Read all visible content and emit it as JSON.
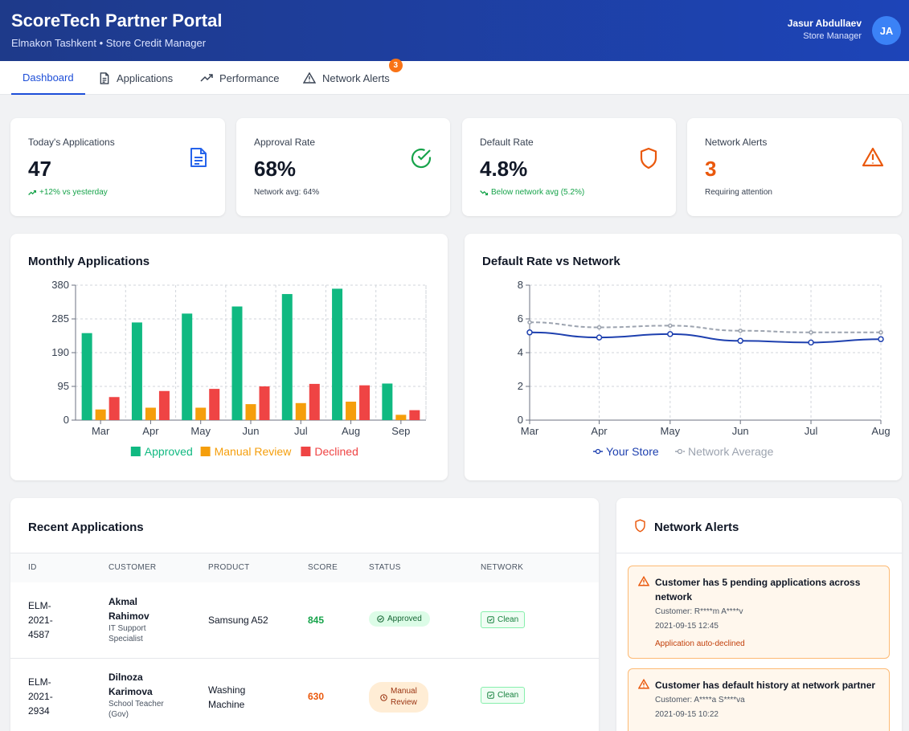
{
  "header": {
    "title": "ScoreTech Partner Portal",
    "subtitle": "Elmakon Tashkent • Store Credit Manager",
    "user_name": "Jasur Abdullaev",
    "user_role": "Store Manager",
    "avatar": "JA"
  },
  "tabs": [
    {
      "label": "Dashboard",
      "icon": "none"
    },
    {
      "label": "Applications",
      "icon": "document-icon"
    },
    {
      "label": "Performance",
      "icon": "trend-up-icon"
    },
    {
      "label": "Network Alerts",
      "icon": "warning-icon",
      "badge": "3"
    }
  ],
  "stats": {
    "applications": {
      "label": "Today's Applications",
      "value": "47",
      "sub": "+12% vs yesterday"
    },
    "approval": {
      "label": "Approval Rate",
      "value": "68%",
      "sub": "Network avg: 64%"
    },
    "default": {
      "label": "Default Rate",
      "value": "4.8%",
      "sub": "Below network avg (5.2%)"
    },
    "alerts": {
      "label": "Network Alerts",
      "value": "3",
      "sub": "Requiring attention"
    }
  },
  "colors": {
    "approved": "#10b981",
    "review": "#f59e0b",
    "declined": "#ef4444",
    "your_store": "#1e40af",
    "network": "#9ca3af"
  },
  "chart_data": [
    {
      "type": "bar",
      "title": "Monthly Applications",
      "categories": [
        "Mar",
        "Apr",
        "May",
        "Jun",
        "Jul",
        "Aug",
        "Sep"
      ],
      "series": [
        {
          "name": "Approved",
          "values": [
            245,
            275,
            300,
            320,
            355,
            370,
            103
          ]
        },
        {
          "name": "Manual Review",
          "values": [
            30,
            35,
            35,
            45,
            48,
            52,
            15
          ]
        },
        {
          "name": "Declined",
          "values": [
            65,
            82,
            88,
            95,
            102,
            98,
            28
          ]
        }
      ],
      "yticks": [
        "0",
        "95",
        "190",
        "285",
        "380"
      ],
      "ylim": [
        0,
        380
      ]
    },
    {
      "type": "line",
      "title": "Default Rate vs Network",
      "categories": [
        "Mar",
        "Apr",
        "May",
        "Jun",
        "Jul",
        "Aug"
      ],
      "series": [
        {
          "name": "Your Store",
          "values": [
            5.2,
            4.9,
            5.1,
            4.7,
            4.6,
            4.8
          ]
        },
        {
          "name": "Network Average",
          "values": [
            5.8,
            5.5,
            5.6,
            5.3,
            5.2,
            5.2
          ]
        }
      ],
      "yticks": [
        "0",
        "2",
        "4",
        "6",
        "8"
      ],
      "ylim": [
        0,
        8
      ]
    }
  ],
  "recent": {
    "title": "Recent Applications",
    "headers": [
      "ID",
      "Customer",
      "Product",
      "Score",
      "Status",
      "Network"
    ],
    "rows": [
      {
        "id_line1": "ELM-",
        "id_line2": "2021-",
        "id_line3": "4587",
        "name_line1": "Akmal",
        "name_line2": "Rahimov",
        "job_line1": "IT Support",
        "job_line2": "Specialist",
        "product_line1": "Samsung A52",
        "product_line2": "",
        "score": "845",
        "status": "Approved",
        "network": "Clean"
      },
      {
        "id_line1": "ELM-",
        "id_line2": "2021-",
        "id_line3": "2934",
        "name_line1": "Dilnoza",
        "name_line2": "Karimova",
        "job_line1": "School Teacher",
        "job_line2": "(Gov)",
        "product_line1": "Washing",
        "product_line2": "Machine",
        "score": "630",
        "status_line1": "Manual",
        "status_line2": "Review",
        "network": "Clean"
      }
    ]
  },
  "alerts_panel": {
    "title": "Network Alerts",
    "items": [
      {
        "title": "Customer has 5 pending applications across network",
        "customer": "Customer: R****m A****v",
        "time": "2021-09-15 12:45",
        "action": "Application auto-declined"
      },
      {
        "title": "Customer has default history at network partner",
        "customer": "Customer: A****a S****va",
        "time": "2021-09-15 10:22"
      }
    ]
  }
}
